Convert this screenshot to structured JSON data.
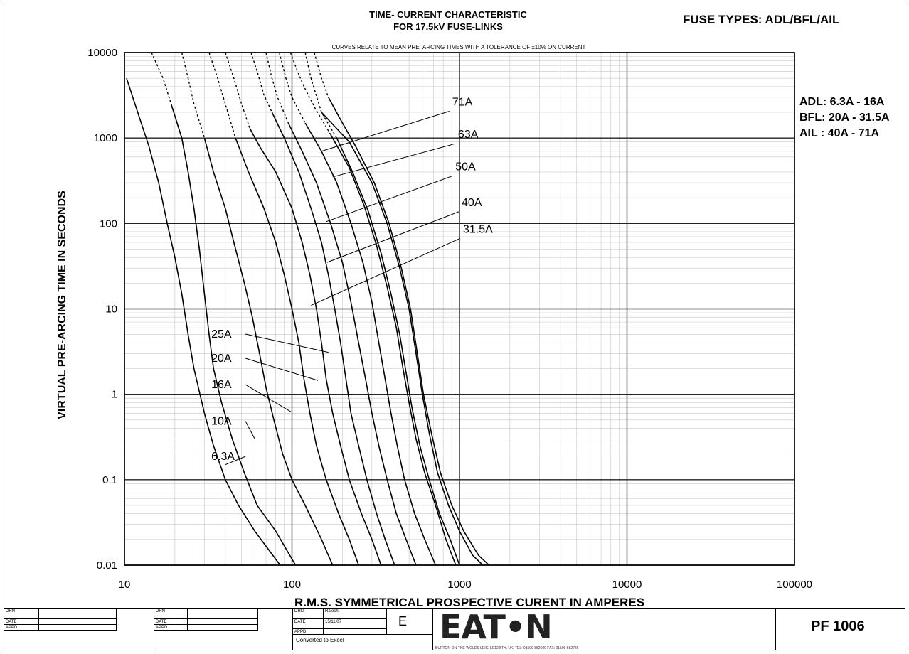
{
  "header": {
    "title_line1": "TIME- CURRENT CHARACTERISTIC",
    "title_line2": "FOR 17.5kV FUSE-LINKS",
    "fuse_types": "FUSE TYPES: ADL/BFL/AIL",
    "note": "CURVES RELATE TO MEAN PRE_ARCING TIMES WITH A TOLERANCE OF ±10% ON CURRENT"
  },
  "ratings": [
    "ADL: 6.3A - 16A",
    "BFL: 20A - 31.5A",
    "AIL : 40A - 71A"
  ],
  "chart_data": {
    "type": "line",
    "title": "TIME- CURRENT CHARACTERISTIC FOR 17.5kV FUSE-LINKS",
    "xlabel": "R.M.S. SYMMETRICAL PROSPECTIVE CURENT IN AMPERES",
    "ylabel": "VIRTUAL PRE-ARCING TIME IN SECONDS",
    "xscale": "log",
    "yscale": "log",
    "xlim": [
      10,
      100000
    ],
    "ylim": [
      0.01,
      10000
    ],
    "x_ticks": [
      "10",
      "100",
      "1000",
      "10000",
      "100000"
    ],
    "y_ticks": [
      "0.01",
      "0.1",
      "1",
      "10",
      "100",
      "1000",
      "10000"
    ],
    "grid": true,
    "series": [
      {
        "name": "6.3A",
        "dashed_x_max": 0,
        "points": [
          [
            10.3,
            5000
          ],
          [
            12,
            2000
          ],
          [
            14,
            800
          ],
          [
            16,
            300
          ],
          [
            18,
            100
          ],
          [
            20,
            40
          ],
          [
            22,
            15
          ],
          [
            24,
            5
          ],
          [
            26,
            2
          ],
          [
            30,
            0.6
          ],
          [
            34,
            0.25
          ],
          [
            40,
            0.1
          ],
          [
            48,
            0.05
          ],
          [
            60,
            0.025
          ],
          [
            85,
            0.01
          ]
        ]
      },
      {
        "name": "10A",
        "dashed_x_max": 17,
        "points": [
          [
            14.5,
            10000
          ],
          [
            17,
            5000
          ],
          [
            19,
            2500
          ],
          [
            22,
            1000
          ],
          [
            24,
            400
          ],
          [
            26,
            150
          ],
          [
            28,
            50
          ],
          [
            30,
            15
          ],
          [
            32,
            5
          ],
          [
            34,
            2
          ],
          [
            38,
            0.8
          ],
          [
            44,
            0.3
          ],
          [
            52,
            0.12
          ],
          [
            62,
            0.05
          ],
          [
            80,
            0.025
          ],
          [
            105,
            0.01
          ]
        ]
      },
      {
        "name": "16A",
        "dashed_x_max": 28,
        "points": [
          [
            22,
            10000
          ],
          [
            24,
            5000
          ],
          [
            26,
            2500
          ],
          [
            30,
            1000
          ],
          [
            34,
            400
          ],
          [
            40,
            150
          ],
          [
            45,
            60
          ],
          [
            52,
            20
          ],
          [
            58,
            8
          ],
          [
            64,
            3
          ],
          [
            70,
            1.2
          ],
          [
            78,
            0.5
          ],
          [
            88,
            0.2
          ],
          [
            100,
            0.1
          ],
          [
            120,
            0.05
          ],
          [
            150,
            0.02
          ],
          [
            175,
            0.01
          ]
        ]
      },
      {
        "name": "20A",
        "dashed_x_max": 44,
        "points": [
          [
            32,
            10000
          ],
          [
            36,
            5000
          ],
          [
            40,
            2500
          ],
          [
            46,
            1000
          ],
          [
            55,
            400
          ],
          [
            68,
            150
          ],
          [
            80,
            60
          ],
          [
            90,
            25
          ],
          [
            100,
            10
          ],
          [
            110,
            4
          ],
          [
            118,
            1.5
          ],
          [
            128,
            0.6
          ],
          [
            140,
            0.25
          ],
          [
            160,
            0.1
          ],
          [
            190,
            0.04
          ],
          [
            220,
            0.02
          ],
          [
            250,
            0.01
          ]
        ]
      },
      {
        "name": "25A",
        "dashed_x_max": 55,
        "points": [
          [
            40,
            10000
          ],
          [
            45,
            5000
          ],
          [
            50,
            2500
          ],
          [
            56,
            1300
          ],
          [
            64,
            800
          ],
          [
            80,
            400
          ],
          [
            100,
            150
          ],
          [
            115,
            60
          ],
          [
            128,
            25
          ],
          [
            140,
            10
          ],
          [
            150,
            4
          ],
          [
            160,
            1.5
          ],
          [
            175,
            0.6
          ],
          [
            195,
            0.25
          ],
          [
            220,
            0.1
          ],
          [
            260,
            0.04
          ],
          [
            300,
            0.02
          ],
          [
            340,
            0.01
          ]
        ]
      },
      {
        "name": "31.5A",
        "dashed_x_max": 74,
        "points": [
          [
            57,
            10000
          ],
          [
            62,
            6000
          ],
          [
            68,
            3200
          ],
          [
            76,
            2000
          ],
          [
            90,
            1000
          ],
          [
            110,
            400
          ],
          [
            130,
            150
          ],
          [
            150,
            60
          ],
          [
            165,
            25
          ],
          [
            180,
            10
          ],
          [
            195,
            4
          ],
          [
            210,
            1.5
          ],
          [
            225,
            0.6
          ],
          [
            250,
            0.25
          ],
          [
            280,
            0.1
          ],
          [
            320,
            0.04
          ],
          [
            360,
            0.02
          ],
          [
            410,
            0.01
          ]
        ]
      },
      {
        "name": "40A",
        "dashed_x_max": 82,
        "points": [
          [
            70,
            10000
          ],
          [
            76,
            5000
          ],
          [
            82,
            3000
          ],
          [
            95,
            1500
          ],
          [
            115,
            700
          ],
          [
            140,
            300
          ],
          [
            170,
            100
          ],
          [
            200,
            35
          ],
          [
            225,
            12
          ],
          [
            250,
            4
          ],
          [
            275,
            1.5
          ],
          [
            300,
            0.6
          ],
          [
            330,
            0.25
          ],
          [
            370,
            0.1
          ],
          [
            420,
            0.04
          ],
          [
            480,
            0.02
          ],
          [
            550,
            0.01
          ]
        ]
      },
      {
        "name": "50A",
        "dashed_x_max": 100,
        "points": [
          [
            84,
            10000
          ],
          [
            92,
            5000
          ],
          [
            100,
            3000
          ],
          [
            120,
            1500
          ],
          [
            150,
            700
          ],
          [
            185,
            300
          ],
          [
            225,
            100
          ],
          [
            265,
            35
          ],
          [
            300,
            12
          ],
          [
            330,
            4
          ],
          [
            360,
            1.5
          ],
          [
            390,
            0.6
          ],
          [
            425,
            0.25
          ],
          [
            470,
            0.1
          ],
          [
            540,
            0.04
          ],
          [
            620,
            0.02
          ],
          [
            720,
            0.01
          ]
        ]
      },
      {
        "name": "63A",
        "dashed_x_max": 138,
        "points": [
          [
            98,
            10000
          ],
          [
            108,
            6000
          ],
          [
            118,
            4000
          ],
          [
            138,
            2200
          ],
          [
            170,
            1100
          ],
          [
            220,
            450
          ],
          [
            270,
            160
          ],
          [
            320,
            55
          ],
          [
            370,
            18
          ],
          [
            420,
            6
          ],
          [
            460,
            2
          ],
          [
            500,
            0.8
          ],
          [
            550,
            0.3
          ],
          [
            620,
            0.12
          ],
          [
            720,
            0.05
          ],
          [
            830,
            0.02
          ],
          [
            950,
            0.01
          ]
        ]
      },
      {
        "name": "71A",
        "dashed_x_max": 150,
        "points": [
          [
            120,
            10000
          ],
          [
            130,
            5000
          ],
          [
            150,
            2000
          ],
          [
            185,
            1000
          ],
          [
            230,
            400
          ],
          [
            285,
            140
          ],
          [
            340,
            45
          ],
          [
            390,
            15
          ],
          [
            440,
            5
          ],
          [
            480,
            1.8
          ],
          [
            520,
            0.7
          ],
          [
            580,
            0.25
          ],
          [
            660,
            0.1
          ],
          [
            760,
            0.04
          ],
          [
            880,
            0.02
          ],
          [
            1000,
            0.01
          ]
        ]
      },
      {
        "name": "",
        "dashed_x_max": 0,
        "points": [
          [
            150,
            2000
          ],
          [
            220,
            900
          ],
          [
            300,
            300
          ],
          [
            370,
            100
          ],
          [
            440,
            30
          ],
          [
            500,
            10
          ],
          [
            550,
            3
          ],
          [
            600,
            1
          ],
          [
            660,
            0.35
          ],
          [
            740,
            0.12
          ],
          [
            860,
            0.05
          ],
          [
            1000,
            0.025
          ],
          [
            1200,
            0.013
          ],
          [
            1380,
            0.01
          ]
        ]
      },
      {
        "name": "",
        "dashed_x_max": 160,
        "points": [
          [
            136,
            10000
          ],
          [
            150,
            5000
          ],
          [
            165,
            3000
          ],
          [
            190,
            1800
          ],
          [
            240,
            800
          ],
          [
            310,
            300
          ],
          [
            380,
            100
          ],
          [
            450,
            30
          ],
          [
            510,
            10
          ],
          [
            560,
            3
          ],
          [
            610,
            1
          ],
          [
            680,
            0.35
          ],
          [
            770,
            0.12
          ],
          [
            900,
            0.05
          ],
          [
            1060,
            0.025
          ],
          [
            1300,
            0.013
          ],
          [
            1500,
            0.01
          ]
        ]
      }
    ],
    "labels": [
      {
        "text": "71A",
        "at": [
          905,
          2400
        ],
        "target": [
          150,
          700
        ]
      },
      {
        "text": "63A",
        "at": [
          980,
          1000
        ],
        "target": [
          175,
          350
        ]
      },
      {
        "text": "50A",
        "at": [
          945,
          420
        ],
        "target": [
          160,
          105
        ]
      },
      {
        "text": "40A",
        "at": [
          1030,
          160
        ],
        "target": [
          162,
          35
        ]
      },
      {
        "text": "31.5A",
        "at": [
          1050,
          78
        ],
        "target": [
          130,
          11
        ]
      },
      {
        "text": "25A",
        "at": [
          33,
          4.6
        ],
        "target": [
          165,
          3.1
        ]
      },
      {
        "text": "20A",
        "at": [
          33,
          2.4
        ],
        "target": [
          143,
          1.45
        ]
      },
      {
        "text": "16A",
        "at": [
          33,
          1.18
        ],
        "target": [
          99,
          0.62
        ]
      },
      {
        "text": "10A",
        "at": [
          33,
          0.44
        ],
        "target": [
          60,
          0.3
        ]
      },
      {
        "text": "6.3A",
        "at": [
          33,
          0.17
        ],
        "target": [
          40,
          0.15
        ]
      }
    ]
  },
  "titleblock": {
    "drn_label": "DRN",
    "date_label": "DATE",
    "appd_label": "APPD",
    "drn_name": "Rajesh",
    "date_value": "15/11/07",
    "revision": "E",
    "converted": "Converted to Excel",
    "brand": "EAT•N",
    "address": "BURTON-ON-THE-WOLDS LEIC. LE12 5TH, UK.    TEL: 01509 882600   FAX: 01509 882786",
    "drawing_no": "PF 1006"
  }
}
